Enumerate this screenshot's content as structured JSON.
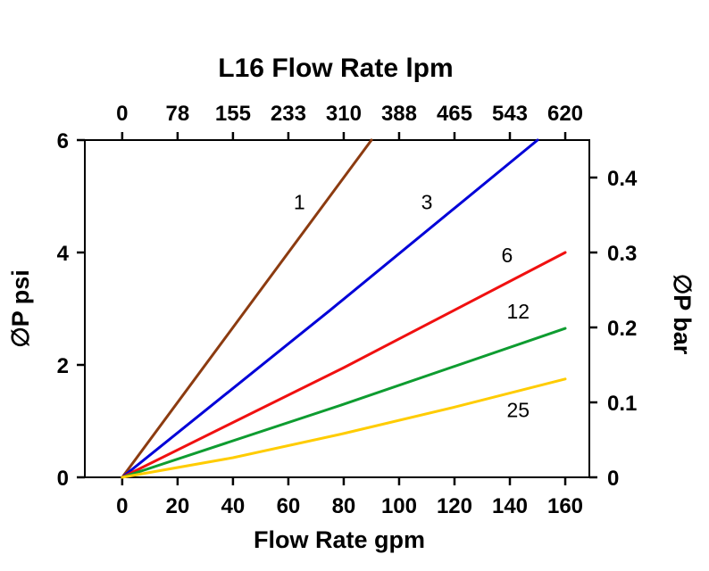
{
  "chart_data": {
    "type": "line",
    "title": "L16 Flow Rate lpm",
    "xlabel_bottom": "Flow Rate gpm",
    "ylabel_left": "∅P psi",
    "ylabel_right": "∅P bar",
    "grid": false,
    "legend": "none (inline labels on lines)",
    "xlim_gpm": [
      -13.5,
      168.7
    ],
    "ylim_psi": [
      0,
      6
    ],
    "ylim_bar": [
      0,
      0.45
    ],
    "x_tick_values_gpm": [
      0,
      20,
      40,
      60,
      80,
      100,
      120,
      140,
      160
    ],
    "x_tick_labels_gpm": [
      "0",
      "20",
      "40",
      "60",
      "80",
      "100",
      "120",
      "140",
      "160"
    ],
    "x_tick_labels_lpm": [
      "0",
      "78",
      "155",
      "233",
      "310",
      "388",
      "465",
      "543",
      "620"
    ],
    "y_tick_values_psi": [
      0,
      2,
      4,
      6
    ],
    "y_tick_labels_psi": [
      "0",
      "2",
      "4",
      "6"
    ],
    "y_tick_values_bar": [
      0,
      0.1,
      0.2,
      0.3,
      0.4
    ],
    "y_tick_labels_bar": [
      "0",
      "0.1",
      "0.2",
      "0.3",
      "0.4"
    ],
    "axis_color": "#000000",
    "series": [
      {
        "name": "1",
        "color": "#8C3B10",
        "points_gpm_psi": [
          [
            0,
            0
          ],
          [
            45,
            3.0
          ],
          [
            90,
            6.0
          ]
        ],
        "label": "1",
        "label_pos_gpm_psi": [
          64,
          4.9
        ]
      },
      {
        "name": "3",
        "color": "#0000D8",
        "points_gpm_psi": [
          [
            0,
            0
          ],
          [
            75,
            2.97
          ],
          [
            150,
            6.0
          ]
        ],
        "label": "3",
        "label_pos_gpm_psi": [
          110,
          4.9
        ]
      },
      {
        "name": "6",
        "color": "#F01010",
        "points_gpm_psi": [
          [
            0,
            0
          ],
          [
            80,
            1.95
          ],
          [
            160,
            4.0
          ]
        ],
        "label": "6",
        "label_pos_gpm_psi": [
          139,
          3.95
        ]
      },
      {
        "name": "12",
        "color": "#0E9C30",
        "points_gpm_psi": [
          [
            0,
            0
          ],
          [
            80,
            1.3
          ],
          [
            160,
            2.65
          ]
        ],
        "label": "12",
        "label_pos_gpm_psi": [
          143,
          2.95
        ]
      },
      {
        "name": "25",
        "color": "#FFCC00",
        "points_gpm_psi": [
          [
            0,
            0
          ],
          [
            40,
            0.35
          ],
          [
            80,
            0.78
          ],
          [
            120,
            1.25
          ],
          [
            160,
            1.75
          ]
        ],
        "label": "25",
        "label_pos_gpm_psi": [
          143,
          1.2
        ]
      }
    ]
  }
}
